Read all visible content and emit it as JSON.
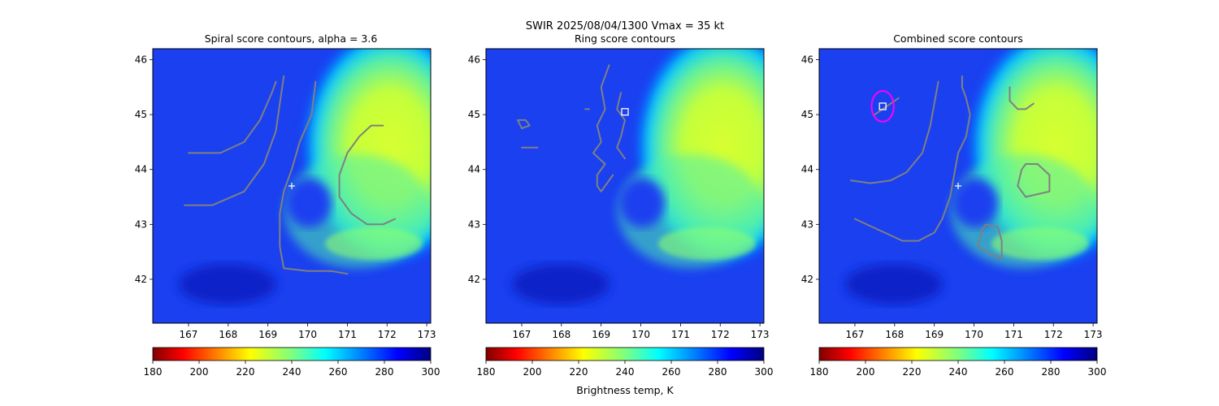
{
  "figure": {
    "suptitle_line1": "SWIR  2025/08/04/1300    Vmax = 35 kt",
    "colorbar_label": "Brightness temp, K"
  },
  "colors": {
    "contour": "#808080",
    "center_marker": "#ffffff",
    "ring_fit": "#ff00ff",
    "square_marker": "#ffffff",
    "colormap": "jet_r"
  },
  "chart_data": [
    {
      "type": "heatmap",
      "title": "Spiral score contours, alpha =  3.6",
      "xlim": [
        166.1,
        173.1
      ],
      "ylim": [
        41.2,
        46.2
      ],
      "xticks": [
        167,
        168,
        169,
        170,
        171,
        172,
        173
      ],
      "yticks": [
        42,
        43,
        44,
        45,
        46
      ],
      "colorbar": {
        "range": [
          180,
          300
        ],
        "ticks": [
          180,
          200,
          220,
          240,
          260,
          280,
          300
        ]
      },
      "center": {
        "lon": 169.6,
        "lat": 43.7
      },
      "contours": [
        {
          "lon": [
            167.0,
            167.8,
            168.4,
            168.8,
            169.1,
            169.2
          ],
          "lat": [
            44.3,
            44.3,
            44.5,
            44.9,
            45.4,
            45.6
          ]
        },
        {
          "lon": [
            166.9,
            167.6,
            168.4,
            168.9,
            169.2,
            169.3,
            169.4
          ],
          "lat": [
            43.35,
            43.35,
            43.6,
            44.1,
            44.7,
            45.2,
            45.7
          ]
        },
        {
          "lon": [
            170.2,
            170.1,
            169.8,
            169.6,
            169.4,
            169.3,
            169.3,
            169.4,
            170.0,
            170.6,
            171.0
          ],
          "lat": [
            45.6,
            45.0,
            44.5,
            44.0,
            43.6,
            43.2,
            42.6,
            42.2,
            42.15,
            42.15,
            42.1
          ]
        },
        {
          "lon": [
            171.9,
            171.6,
            171.3,
            171.0,
            170.8,
            170.8,
            171.1,
            171.5,
            171.9,
            172.2
          ],
          "lat": [
            44.8,
            44.8,
            44.6,
            44.3,
            43.9,
            43.5,
            43.2,
            43.0,
            43.0,
            43.1
          ]
        }
      ]
    },
    {
      "type": "heatmap",
      "title": "Ring score contours",
      "xlim": [
        166.1,
        173.1
      ],
      "ylim": [
        41.2,
        46.2
      ],
      "xticks": [
        167,
        168,
        169,
        170,
        171,
        172,
        173
      ],
      "yticks": [
        42,
        43,
        44,
        45,
        46
      ],
      "colorbar": {
        "range": [
          180,
          300
        ],
        "ticks": [
          180,
          200,
          220,
          240,
          260,
          280,
          300
        ]
      },
      "square": {
        "lon": 169.6,
        "lat": 45.05
      },
      "contours": [
        {
          "lon": [
            169.2,
            169.0,
            169.1,
            168.9,
            169.0,
            168.8,
            169.1,
            168.9,
            168.9,
            169.0,
            169.3
          ],
          "lat": [
            45.9,
            45.5,
            45.1,
            44.8,
            44.5,
            44.3,
            44.1,
            43.9,
            43.7,
            43.6,
            43.9
          ]
        },
        {
          "lon": [
            169.5,
            169.4,
            169.6,
            169.5,
            169.4,
            169.6
          ],
          "lat": [
            45.4,
            45.1,
            44.9,
            44.6,
            44.4,
            44.2
          ]
        },
        {
          "lon": [
            166.9,
            167.1,
            167.2,
            167.0,
            166.9
          ],
          "lat": [
            44.9,
            44.9,
            44.8,
            44.75,
            44.9
          ]
        },
        {
          "lon": [
            167.0,
            167.2,
            167.4
          ],
          "lat": [
            44.4,
            44.4,
            44.4
          ]
        },
        {
          "lon": [
            168.6,
            168.7
          ],
          "lat": [
            45.1,
            45.1
          ]
        }
      ]
    },
    {
      "type": "heatmap",
      "title": "Combined score contours",
      "xlim": [
        166.1,
        173.1
      ],
      "ylim": [
        41.2,
        46.2
      ],
      "xticks": [
        167,
        168,
        169,
        170,
        171,
        172,
        173
      ],
      "yticks": [
        42,
        43,
        44,
        45,
        46
      ],
      "colorbar": {
        "range": [
          180,
          300
        ],
        "ticks": [
          180,
          200,
          220,
          240,
          260,
          280,
          300
        ]
      },
      "center": {
        "lon": 169.6,
        "lat": 43.7
      },
      "square": {
        "lon": 167.7,
        "lat": 45.15
      },
      "ring": {
        "lon": 167.7,
        "lat": 45.15,
        "radius": 0.28
      },
      "contours": [
        {
          "lon": [
            166.9,
            167.4,
            167.9,
            168.3,
            168.7,
            168.9,
            169.0,
            169.1
          ],
          "lat": [
            43.8,
            43.75,
            43.8,
            43.95,
            44.3,
            44.8,
            45.2,
            45.6
          ]
        },
        {
          "lon": [
            167.0,
            167.6,
            168.2,
            168.6,
            169.0,
            169.2,
            169.4,
            169.5,
            169.6
          ],
          "lat": [
            43.1,
            42.9,
            42.7,
            42.7,
            42.85,
            43.1,
            43.5,
            43.9,
            44.3
          ]
        },
        {
          "lon": [
            169.6,
            169.8,
            169.9,
            169.8,
            169.7,
            169.7
          ],
          "lat": [
            44.3,
            44.6,
            45.0,
            45.3,
            45.5,
            45.7
          ]
        },
        {
          "lon": [
            170.9,
            170.9,
            171.1,
            171.3,
            171.5
          ],
          "lat": [
            45.5,
            45.25,
            45.1,
            45.1,
            45.2
          ]
        },
        {
          "lon": [
            171.3,
            171.6,
            171.9,
            171.9,
            171.6,
            171.3,
            171.1,
            171.2,
            171.3
          ],
          "lat": [
            44.1,
            44.1,
            43.9,
            43.6,
            43.55,
            43.5,
            43.7,
            44.0,
            44.1
          ]
        },
        {
          "lon": [
            170.3,
            170.6,
            170.7,
            170.7,
            170.6,
            170.3,
            170.1,
            170.2,
            170.3
          ],
          "lat": [
            43.0,
            42.95,
            42.7,
            42.4,
            42.4,
            42.5,
            42.6,
            42.9,
            43.0
          ]
        },
        {
          "lon": [
            167.5,
            167.8,
            168.1
          ],
          "lat": [
            45.0,
            45.15,
            45.3
          ]
        }
      ]
    }
  ]
}
